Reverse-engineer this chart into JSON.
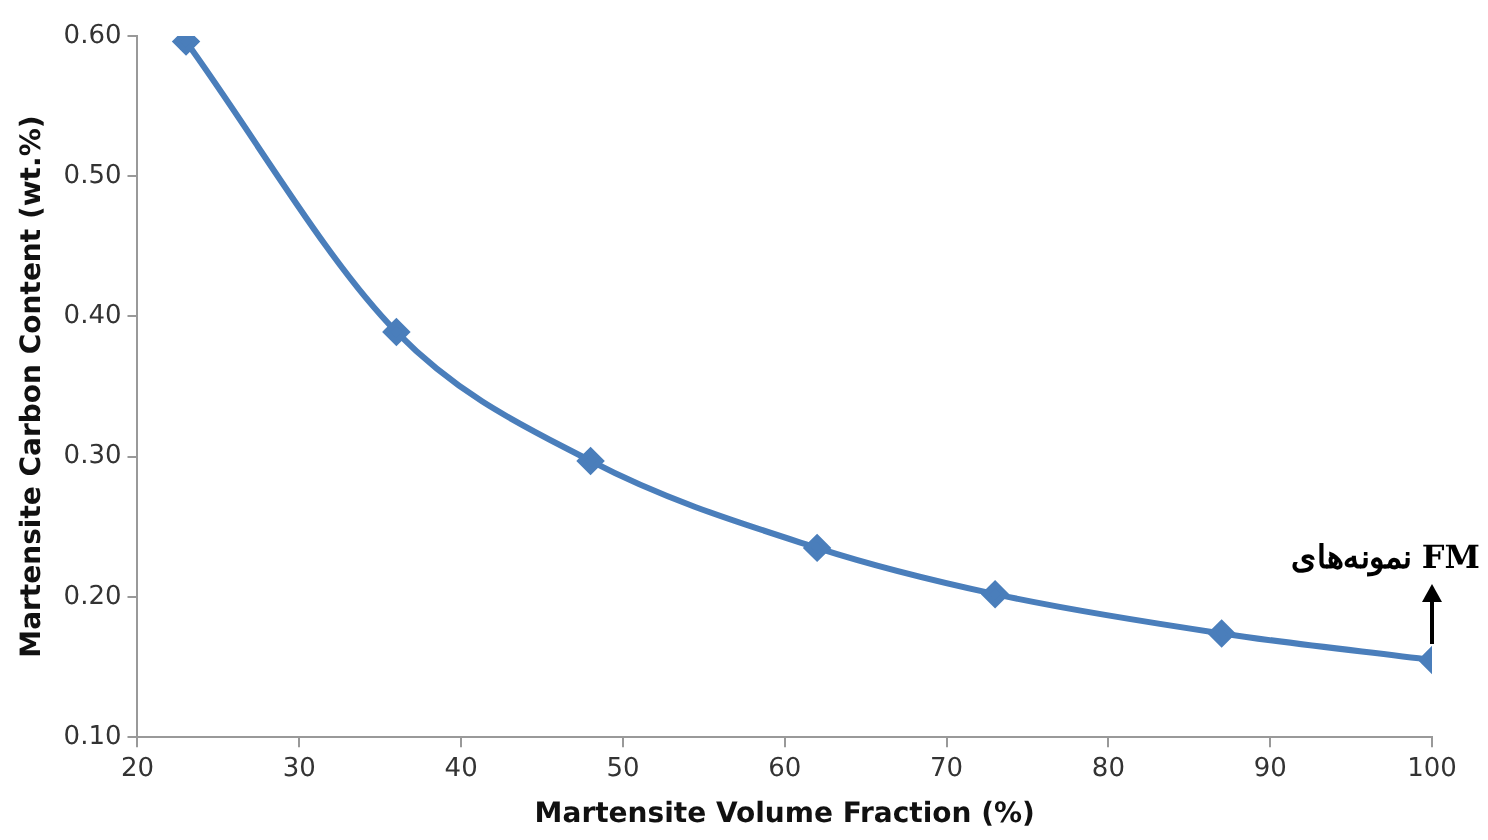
{
  "chart_data": {
    "type": "line",
    "xlabel": "Martensite Volume Fraction (%)",
    "ylabel": "Martensite Carbon Content (wt.%)",
    "x": [
      23,
      36,
      48,
      62,
      73,
      87,
      100
    ],
    "series": [
      {
        "color": "#4a7ebb",
        "values": [
          0.596,
          0.389,
          0.297,
          0.235,
          0.202,
          0.174,
          0.155
        ]
      }
    ],
    "xlim": [
      20,
      100
    ],
    "xticks": [
      20,
      30,
      40,
      50,
      60,
      70,
      80,
      90,
      100
    ],
    "ylim": [
      0.1,
      0.6
    ],
    "yticks": [
      {
        "value": 0.1,
        "label": "0.10"
      },
      {
        "value": 0.2,
        "label": "0.20"
      },
      {
        "value": 0.3,
        "label": "0.30"
      },
      {
        "value": 0.4,
        "label": "0.40"
      },
      {
        "value": 0.5,
        "label": "0.50"
      },
      {
        "value": 0.6,
        "label": "0.60"
      }
    ],
    "grid": false,
    "legend": false,
    "marker": "diamond",
    "line_style": "solid",
    "annotations": [
      {
        "text": "نمونه‌های FM",
        "x": 100,
        "y": 0.155
      }
    ]
  }
}
